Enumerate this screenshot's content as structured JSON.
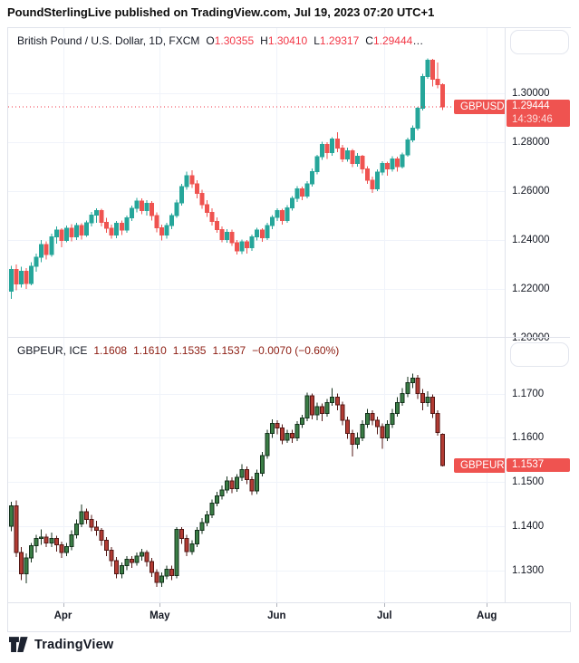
{
  "header": {
    "text": "PoundSterlingLive published on TradingView.com, Jul 19, 2023 07:20 UTC+1"
  },
  "footer": {
    "brand": "TradingView"
  },
  "time_axis": {
    "months": [
      {
        "label": "Apr",
        "index": 10.3
      },
      {
        "label": "May",
        "index": 29.6
      },
      {
        "label": "Jun",
        "index": 52.9
      },
      {
        "label": "Jul",
        "index": 74.4
      },
      {
        "label": "Aug",
        "index": 94.8
      }
    ]
  },
  "chart_data": [
    {
      "type": "candlestick",
      "symbol": "GBPUSD",
      "title": "British Pound / U.S. Dollar, 1D, FXCM",
      "legend_ohlc": [
        {
          "k": "O",
          "v": "1.30355"
        },
        {
          "k": "H",
          "v": "1.30410"
        },
        {
          "k": "L",
          "v": "1.29317"
        },
        {
          "k": "C",
          "v": "1.29444"
        }
      ],
      "legend_ellipsis": "…",
      "value_color": "#f23645",
      "up_color": "#26a69a",
      "down_color": "#ef5350",
      "up_border": "#26a69a",
      "down_border": "#ef5350",
      "y_range": {
        "top": 1.32666,
        "bottom": 1.20036
      },
      "ticks": [
        {
          "price": 1.3,
          "label": "1.30000"
        },
        {
          "price": 1.28,
          "label": "1.28000"
        },
        {
          "price": 1.26,
          "label": "1.26000"
        },
        {
          "price": 1.24,
          "label": "1.24000"
        },
        {
          "price": 1.22,
          "label": "1.22000"
        },
        {
          "price": 1.2,
          "label": "1.20000"
        }
      ],
      "last_price": {
        "price": 1.29444,
        "label": "1.29444",
        "countdown": "14:39:46",
        "badge_color": "#ef5350",
        "dotted_line": true
      },
      "candles": [
        [
          1.219,
          1.2295,
          1.216,
          1.228
        ],
        [
          1.228,
          1.23,
          1.2195,
          1.222
        ],
        [
          1.222,
          1.229,
          1.2205,
          1.2272
        ],
        [
          1.2272,
          1.2285,
          1.22,
          1.2222
        ],
        [
          1.2222,
          1.231,
          1.2215,
          1.2292
        ],
        [
          1.2292,
          1.2345,
          1.227,
          1.233
        ],
        [
          1.233,
          1.24,
          1.231,
          1.2382
        ],
        [
          1.2382,
          1.2395,
          1.232,
          1.234
        ],
        [
          1.234,
          1.2425,
          1.2332,
          1.2412
        ],
        [
          1.2412,
          1.2455,
          1.2385,
          1.244
        ],
        [
          1.244,
          1.2448,
          1.237,
          1.2398
        ],
        [
          1.2398,
          1.246,
          1.239,
          1.2448
        ],
        [
          1.2448,
          1.2465,
          1.2395,
          1.2412
        ],
        [
          1.2412,
          1.247,
          1.24,
          1.246
        ],
        [
          1.246,
          1.2468,
          1.2402,
          1.242
        ],
        [
          1.242,
          1.248,
          1.2412,
          1.247
        ],
        [
          1.247,
          1.2515,
          1.2455,
          1.2502
        ],
        [
          1.2502,
          1.253,
          1.247,
          1.252
        ],
        [
          1.252,
          1.2528,
          1.2455,
          1.2472
        ],
        [
          1.2472,
          1.249,
          1.243,
          1.2448
        ],
        [
          1.2448,
          1.2462,
          1.2405,
          1.242
        ],
        [
          1.242,
          1.2478,
          1.2408,
          1.2468
        ],
        [
          1.2468,
          1.248,
          1.242,
          1.244
        ],
        [
          1.244,
          1.25,
          1.243,
          1.249
        ],
        [
          1.249,
          1.254,
          1.2478,
          1.253
        ],
        [
          1.253,
          1.2572,
          1.2512,
          1.256
        ],
        [
          1.256,
          1.257,
          1.2505,
          1.252
        ],
        [
          1.252,
          1.2562,
          1.25,
          1.255
        ],
        [
          1.255,
          1.256,
          1.248,
          1.25
        ],
        [
          1.25,
          1.2512,
          1.2432,
          1.245
        ],
        [
          1.245,
          1.2462,
          1.2398,
          1.242
        ],
        [
          1.242,
          1.247,
          1.2405,
          1.246
        ],
        [
          1.246,
          1.251,
          1.2445,
          1.25
        ],
        [
          1.25,
          1.2565,
          1.249,
          1.2552
        ],
        [
          1.2552,
          1.263,
          1.254,
          1.2618
        ],
        [
          1.2618,
          1.268,
          1.2605,
          1.2662
        ],
        [
          1.2662,
          1.2685,
          1.2612,
          1.263
        ],
        [
          1.263,
          1.2645,
          1.257,
          1.259
        ],
        [
          1.259,
          1.2605,
          1.2528,
          1.2545
        ],
        [
          1.2545,
          1.2562,
          1.2495,
          1.2512
        ],
        [
          1.2512,
          1.253,
          1.246,
          1.2475
        ],
        [
          1.2475,
          1.2492,
          1.243,
          1.2442
        ],
        [
          1.2442,
          1.2455,
          1.239,
          1.2402
        ],
        [
          1.2402,
          1.2445,
          1.2388,
          1.2432
        ],
        [
          1.2432,
          1.2442,
          1.2375,
          1.2388
        ],
        [
          1.2388,
          1.24,
          1.234,
          1.2355
        ],
        [
          1.2355,
          1.2402,
          1.2342,
          1.2392
        ],
        [
          1.2392,
          1.24,
          1.2345,
          1.2368
        ],
        [
          1.2368,
          1.2422,
          1.2355,
          1.2412
        ],
        [
          1.2412,
          1.245,
          1.2398,
          1.244
        ],
        [
          1.244,
          1.2448,
          1.2392,
          1.241
        ],
        [
          1.241,
          1.247,
          1.24,
          1.246
        ],
        [
          1.246,
          1.2502,
          1.2445,
          1.2492
        ],
        [
          1.2492,
          1.253,
          1.2478,
          1.252
        ],
        [
          1.252,
          1.2528,
          1.2462,
          1.248
        ],
        [
          1.248,
          1.2542,
          1.247,
          1.2532
        ],
        [
          1.2532,
          1.258,
          1.252,
          1.257
        ],
        [
          1.257,
          1.262,
          1.2555,
          1.261
        ],
        [
          1.261,
          1.2618,
          1.2562,
          1.258
        ],
        [
          1.258,
          1.264,
          1.257,
          1.263
        ],
        [
          1.263,
          1.2692,
          1.2618,
          1.268
        ],
        [
          1.268,
          1.2748,
          1.2668,
          1.274
        ],
        [
          1.274,
          1.2802,
          1.2728,
          1.279
        ],
        [
          1.279,
          1.28,
          1.2732,
          1.2758
        ],
        [
          1.2758,
          1.282,
          1.2745,
          1.2812
        ],
        [
          1.2812,
          1.284,
          1.276,
          1.2775
        ],
        [
          1.2775,
          1.2788,
          1.2718,
          1.2732
        ],
        [
          1.2732,
          1.2778,
          1.272,
          1.2765
        ],
        [
          1.2765,
          1.2772,
          1.2698,
          1.2712
        ],
        [
          1.2712,
          1.2755,
          1.27,
          1.2742
        ],
        [
          1.2742,
          1.2748,
          1.2672,
          1.269
        ],
        [
          1.269,
          1.2702,
          1.263,
          1.2645
        ],
        [
          1.2645,
          1.266,
          1.2592,
          1.261
        ],
        [
          1.261,
          1.2688,
          1.26,
          1.2678
        ],
        [
          1.2678,
          1.2722,
          1.2665,
          1.2712
        ],
        [
          1.2712,
          1.272,
          1.2662,
          1.269
        ],
        [
          1.269,
          1.2742,
          1.268,
          1.2732
        ],
        [
          1.2732,
          1.274,
          1.268,
          1.27
        ],
        [
          1.27,
          1.2758,
          1.2692,
          1.2748
        ],
        [
          1.2748,
          1.2818,
          1.274,
          1.281
        ],
        [
          1.281,
          1.2868,
          1.28,
          1.2858
        ],
        [
          1.2858,
          1.2945,
          1.2848,
          1.2938
        ],
        [
          1.2938,
          1.308,
          1.293,
          1.3068
        ],
        [
          1.3068,
          1.3142,
          1.306,
          1.3135
        ],
        [
          1.3135,
          1.314,
          1.3028,
          1.3058
        ],
        [
          1.3058,
          1.3125,
          1.302,
          1.3036
        ],
        [
          1.30355,
          1.3041,
          1.29317,
          1.29444
        ]
      ]
    },
    {
      "type": "candlestick",
      "symbol": "GBPEUR",
      "title": "GBPEUR, ICE",
      "legend_values": [
        "1.1608",
        "1.1610",
        "1.1535",
        "1.1537",
        "−0.0070 (−0.60%)"
      ],
      "value_color": "#8c1b10",
      "up_color": "#3a7d45",
      "down_color": "#b23b33",
      "up_border": "#14321c",
      "down_border": "#531714",
      "y_range": {
        "top": 1.18263,
        "bottom": 1.12273
      },
      "ticks": [
        {
          "price": 1.17,
          "label": "1.1700"
        },
        {
          "price": 1.16,
          "label": "1.1600"
        },
        {
          "price": 1.15,
          "label": "1.1500"
        },
        {
          "price": 1.14,
          "label": "1.1400"
        },
        {
          "price": 1.13,
          "label": "1.1300"
        }
      ],
      "last_price": {
        "price": 1.1537,
        "label": "1.1537",
        "badge_color": "#ef5350",
        "dotted_line": false
      },
      "candles": [
        [
          1.14,
          1.1455,
          1.1388,
          1.1446
        ],
        [
          1.1446,
          1.1458,
          1.133,
          1.134
        ],
        [
          1.134,
          1.1352,
          1.1278,
          1.1292
        ],
        [
          1.1292,
          1.1338,
          1.127,
          1.1328
        ],
        [
          1.1328,
          1.1362,
          1.1318,
          1.1355
        ],
        [
          1.1355,
          1.138,
          1.134,
          1.1372
        ],
        [
          1.1372,
          1.1392,
          1.1358,
          1.1375
        ],
        [
          1.1375,
          1.1382,
          1.1352,
          1.1362
        ],
        [
          1.1362,
          1.1385,
          1.1352,
          1.1372
        ],
        [
          1.1372,
          1.1378,
          1.1342,
          1.1358
        ],
        [
          1.1358,
          1.1365,
          1.1328,
          1.134
        ],
        [
          1.134,
          1.1362,
          1.1332,
          1.1353
        ],
        [
          1.1353,
          1.139,
          1.1345,
          1.138
        ],
        [
          1.138,
          1.1415,
          1.1372,
          1.1405
        ],
        [
          1.1405,
          1.1449,
          1.1398,
          1.1432
        ],
        [
          1.1432,
          1.144,
          1.1405,
          1.1415
        ],
        [
          1.1415,
          1.1425,
          1.1388,
          1.1398
        ],
        [
          1.1398,
          1.1412,
          1.1378,
          1.139
        ],
        [
          1.139,
          1.1395,
          1.1355,
          1.1368
        ],
        [
          1.1368,
          1.1375,
          1.1332,
          1.1345
        ],
        [
          1.1345,
          1.1352,
          1.1308,
          1.1322
        ],
        [
          1.1322,
          1.133,
          1.1282,
          1.1292
        ],
        [
          1.1292,
          1.1318,
          1.1282,
          1.131
        ],
        [
          1.131,
          1.1332,
          1.13,
          1.1325
        ],
        [
          1.1325,
          1.1332,
          1.1305,
          1.1318
        ],
        [
          1.1318,
          1.134,
          1.131,
          1.1332
        ],
        [
          1.1332,
          1.1348,
          1.1322,
          1.134
        ],
        [
          1.134,
          1.1345,
          1.1308,
          1.132
        ],
        [
          1.132,
          1.1328,
          1.1285,
          1.1295
        ],
        [
          1.1295,
          1.1302,
          1.1262,
          1.1272
        ],
        [
          1.1272,
          1.1295,
          1.1262,
          1.1287
        ],
        [
          1.1287,
          1.131,
          1.128,
          1.1302
        ],
        [
          1.1302,
          1.131,
          1.1278,
          1.1288
        ],
        [
          1.1288,
          1.1398,
          1.1282,
          1.1392
        ],
        [
          1.1392,
          1.1398,
          1.136,
          1.1372
        ],
        [
          1.1372,
          1.138,
          1.1332,
          1.1342
        ],
        [
          1.1342,
          1.1368,
          1.1335,
          1.136
        ],
        [
          1.136,
          1.1398,
          1.1352,
          1.139
        ],
        [
          1.139,
          1.1418,
          1.1382,
          1.1408
        ],
        [
          1.1408,
          1.1435,
          1.14,
          1.1425
        ],
        [
          1.1425,
          1.146,
          1.1418,
          1.1452
        ],
        [
          1.1452,
          1.1478,
          1.1445,
          1.1468
        ],
        [
          1.1468,
          1.1492,
          1.146,
          1.1482
        ],
        [
          1.1482,
          1.1512,
          1.1475,
          1.1502
        ],
        [
          1.1502,
          1.151,
          1.1475,
          1.1485
        ],
        [
          1.1485,
          1.1518,
          1.1478,
          1.151
        ],
        [
          1.151,
          1.154,
          1.1502,
          1.1528
        ],
        [
          1.1528,
          1.1535,
          1.1495,
          1.1505
        ],
        [
          1.1505,
          1.1512,
          1.147,
          1.148
        ],
        [
          1.148,
          1.1528,
          1.1472,
          1.152
        ],
        [
          1.152,
          1.1568,
          1.1512,
          1.156
        ],
        [
          1.156,
          1.1618,
          1.1552,
          1.161
        ],
        [
          1.161,
          1.1642,
          1.16,
          1.1632
        ],
        [
          1.1632,
          1.164,
          1.1608,
          1.1622
        ],
        [
          1.1622,
          1.163,
          1.1585,
          1.1595
        ],
        [
          1.1595,
          1.1618,
          1.1588,
          1.161
        ],
        [
          1.161,
          1.1618,
          1.1588,
          1.16
        ],
        [
          1.16,
          1.1638,
          1.1592,
          1.163
        ],
        [
          1.163,
          1.1652,
          1.1622,
          1.1645
        ],
        [
          1.1645,
          1.1702,
          1.1638,
          1.1695
        ],
        [
          1.1695,
          1.17,
          1.1642,
          1.1652
        ],
        [
          1.1652,
          1.168,
          1.164,
          1.167
        ],
        [
          1.167,
          1.1678,
          1.1638,
          1.1655
        ],
        [
          1.1655,
          1.1688,
          1.1648,
          1.168
        ],
        [
          1.168,
          1.1712,
          1.1672,
          1.1692
        ],
        [
          1.1692,
          1.17,
          1.1662,
          1.1675
        ],
        [
          1.1675,
          1.1682,
          1.1628,
          1.164
        ],
        [
          1.164,
          1.1648,
          1.1598,
          1.161
        ],
        [
          1.161,
          1.1618,
          1.1558,
          1.1585
        ],
        [
          1.1585,
          1.1612,
          1.1575,
          1.16
        ],
        [
          1.16,
          1.164,
          1.1592,
          1.163
        ],
        [
          1.163,
          1.1665,
          1.1622,
          1.1655
        ],
        [
          1.1655,
          1.1662,
          1.1628,
          1.164
        ],
        [
          1.164,
          1.1648,
          1.1608,
          1.1625
        ],
        [
          1.1625,
          1.1632,
          1.1575,
          1.16
        ],
        [
          1.16,
          1.164,
          1.1592,
          1.163
        ],
        [
          1.163,
          1.1665,
          1.1622,
          1.1655
        ],
        [
          1.1655,
          1.1692,
          1.1648,
          1.168
        ],
        [
          1.168,
          1.1712,
          1.1672,
          1.17
        ],
        [
          1.17,
          1.1738,
          1.1692,
          1.1725
        ],
        [
          1.1725,
          1.1745,
          1.1712,
          1.1735
        ],
        [
          1.1735,
          1.1742,
          1.1688,
          1.17
        ],
        [
          1.17,
          1.171,
          1.1662,
          1.168
        ],
        [
          1.168,
          1.1705,
          1.167,
          1.1692
        ],
        [
          1.1692,
          1.1698,
          1.1645,
          1.1655
        ],
        [
          1.1655,
          1.1662,
          1.1605,
          1.1612
        ],
        [
          1.1608,
          1.161,
          1.1535,
          1.1537
        ]
      ]
    }
  ]
}
